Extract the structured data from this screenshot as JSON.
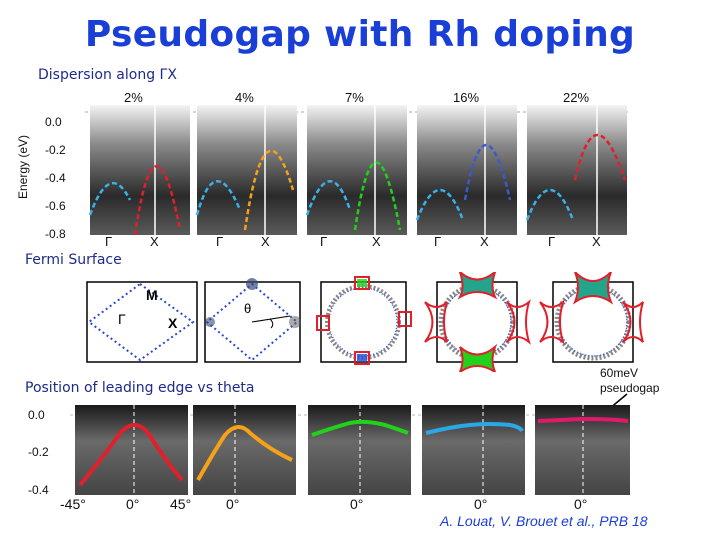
{
  "title": "Pseudogap with Rh doping",
  "dispersion": {
    "label": "Dispersion along ΓX",
    "y_axis_label": "Energy (eV)",
    "y_ticks": [
      "0.0",
      "-0.2",
      "-0.4",
      "-0.6",
      "-0.8"
    ],
    "dopings": [
      "2%",
      "4%",
      "7%",
      "16%",
      "22%"
    ],
    "x_ticks": [
      "Γ",
      "X"
    ]
  },
  "fermi_surface": {
    "label": "Fermi Surface",
    "symbols": {
      "m": "M",
      "gamma": "Γ",
      "x": "X",
      "theta": "θ"
    }
  },
  "leading_edge": {
    "label": "Position of leading edge vs theta",
    "y_ticks": [
      "0.0",
      "-0.2",
      "-0.4"
    ],
    "x_ticks": [
      "-45°",
      "0°",
      "45°",
      "0°",
      "0°",
      "0°",
      "0°"
    ]
  },
  "annotation": {
    "line1": "60meV",
    "line2": "pseudogap"
  },
  "citation": "A. Louat, V. Brouet et al., PRB 18",
  "colors": {
    "red": "#e0202a",
    "orange": "#f5a21a",
    "green": "#22d11c",
    "blue": "#2aa7e6",
    "pink": "#e01a6a",
    "title": "#1a3fd6"
  }
}
